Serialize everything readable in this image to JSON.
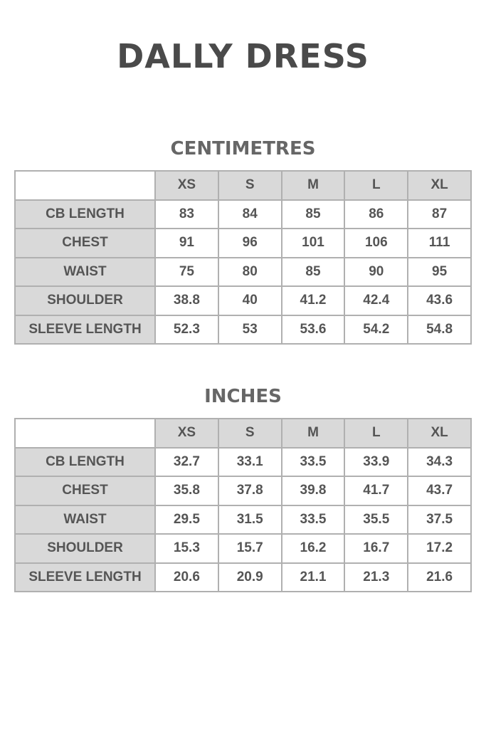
{
  "title": "DALLY DRESS",
  "sizes": [
    "XS",
    "S",
    "M",
    "L",
    "XL"
  ],
  "colors": {
    "header_bg": "#d9d9d9",
    "border": "#b0b0b0",
    "text": "#555555"
  },
  "tables": [
    {
      "heading": "CENTIMETRES",
      "rows": [
        {
          "label": "CB LENGTH",
          "values": [
            "83",
            "84",
            "85",
            "86",
            "87"
          ]
        },
        {
          "label": "CHEST",
          "values": [
            "91",
            "96",
            "101",
            "106",
            "111"
          ]
        },
        {
          "label": "WAIST",
          "values": [
            "75",
            "80",
            "85",
            "90",
            "95"
          ]
        },
        {
          "label": "SHOULDER",
          "values": [
            "38.8",
            "40",
            "41.2",
            "42.4",
            "43.6"
          ]
        },
        {
          "label": "SLEEVE LENGTH",
          "values": [
            "52.3",
            "53",
            "53.6",
            "54.2",
            "54.8"
          ]
        }
      ]
    },
    {
      "heading": "INCHES",
      "rows": [
        {
          "label": "CB LENGTH",
          "values": [
            "32.7",
            "33.1",
            "33.5",
            "33.9",
            "34.3"
          ]
        },
        {
          "label": "CHEST",
          "values": [
            "35.8",
            "37.8",
            "39.8",
            "41.7",
            "43.7"
          ]
        },
        {
          "label": "WAIST",
          "values": [
            "29.5",
            "31.5",
            "33.5",
            "35.5",
            "37.5"
          ]
        },
        {
          "label": "SHOULDER",
          "values": [
            "15.3",
            "15.7",
            "16.2",
            "16.7",
            "17.2"
          ]
        },
        {
          "label": "SLEEVE LENGTH",
          "values": [
            "20.6",
            "20.9",
            "21.1",
            "21.3",
            "21.6"
          ]
        }
      ]
    }
  ]
}
